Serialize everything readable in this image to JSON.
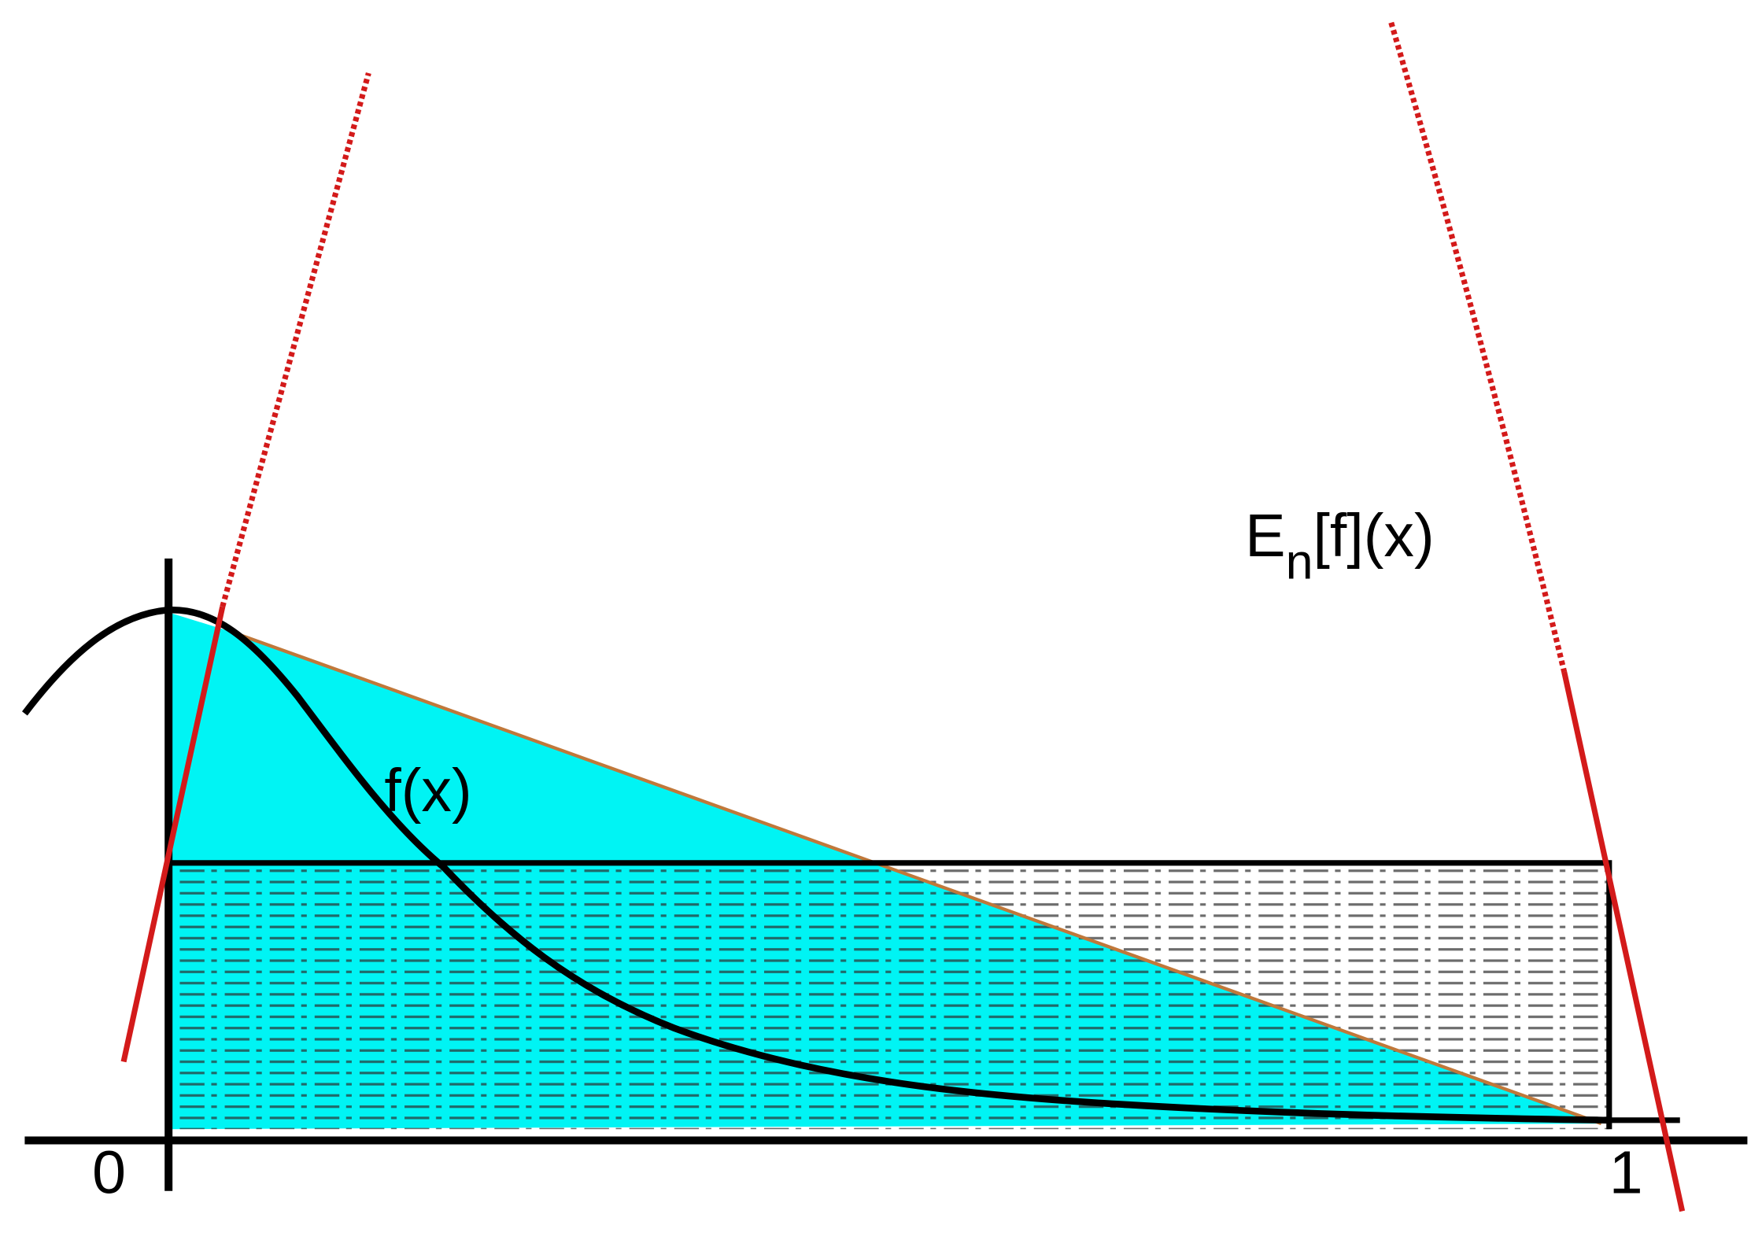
{
  "labels": {
    "origin": "0",
    "one": "1",
    "f": "f(x)",
    "en_main": "E",
    "en_sub": "n",
    "en_rest": "[f](x)"
  }
}
